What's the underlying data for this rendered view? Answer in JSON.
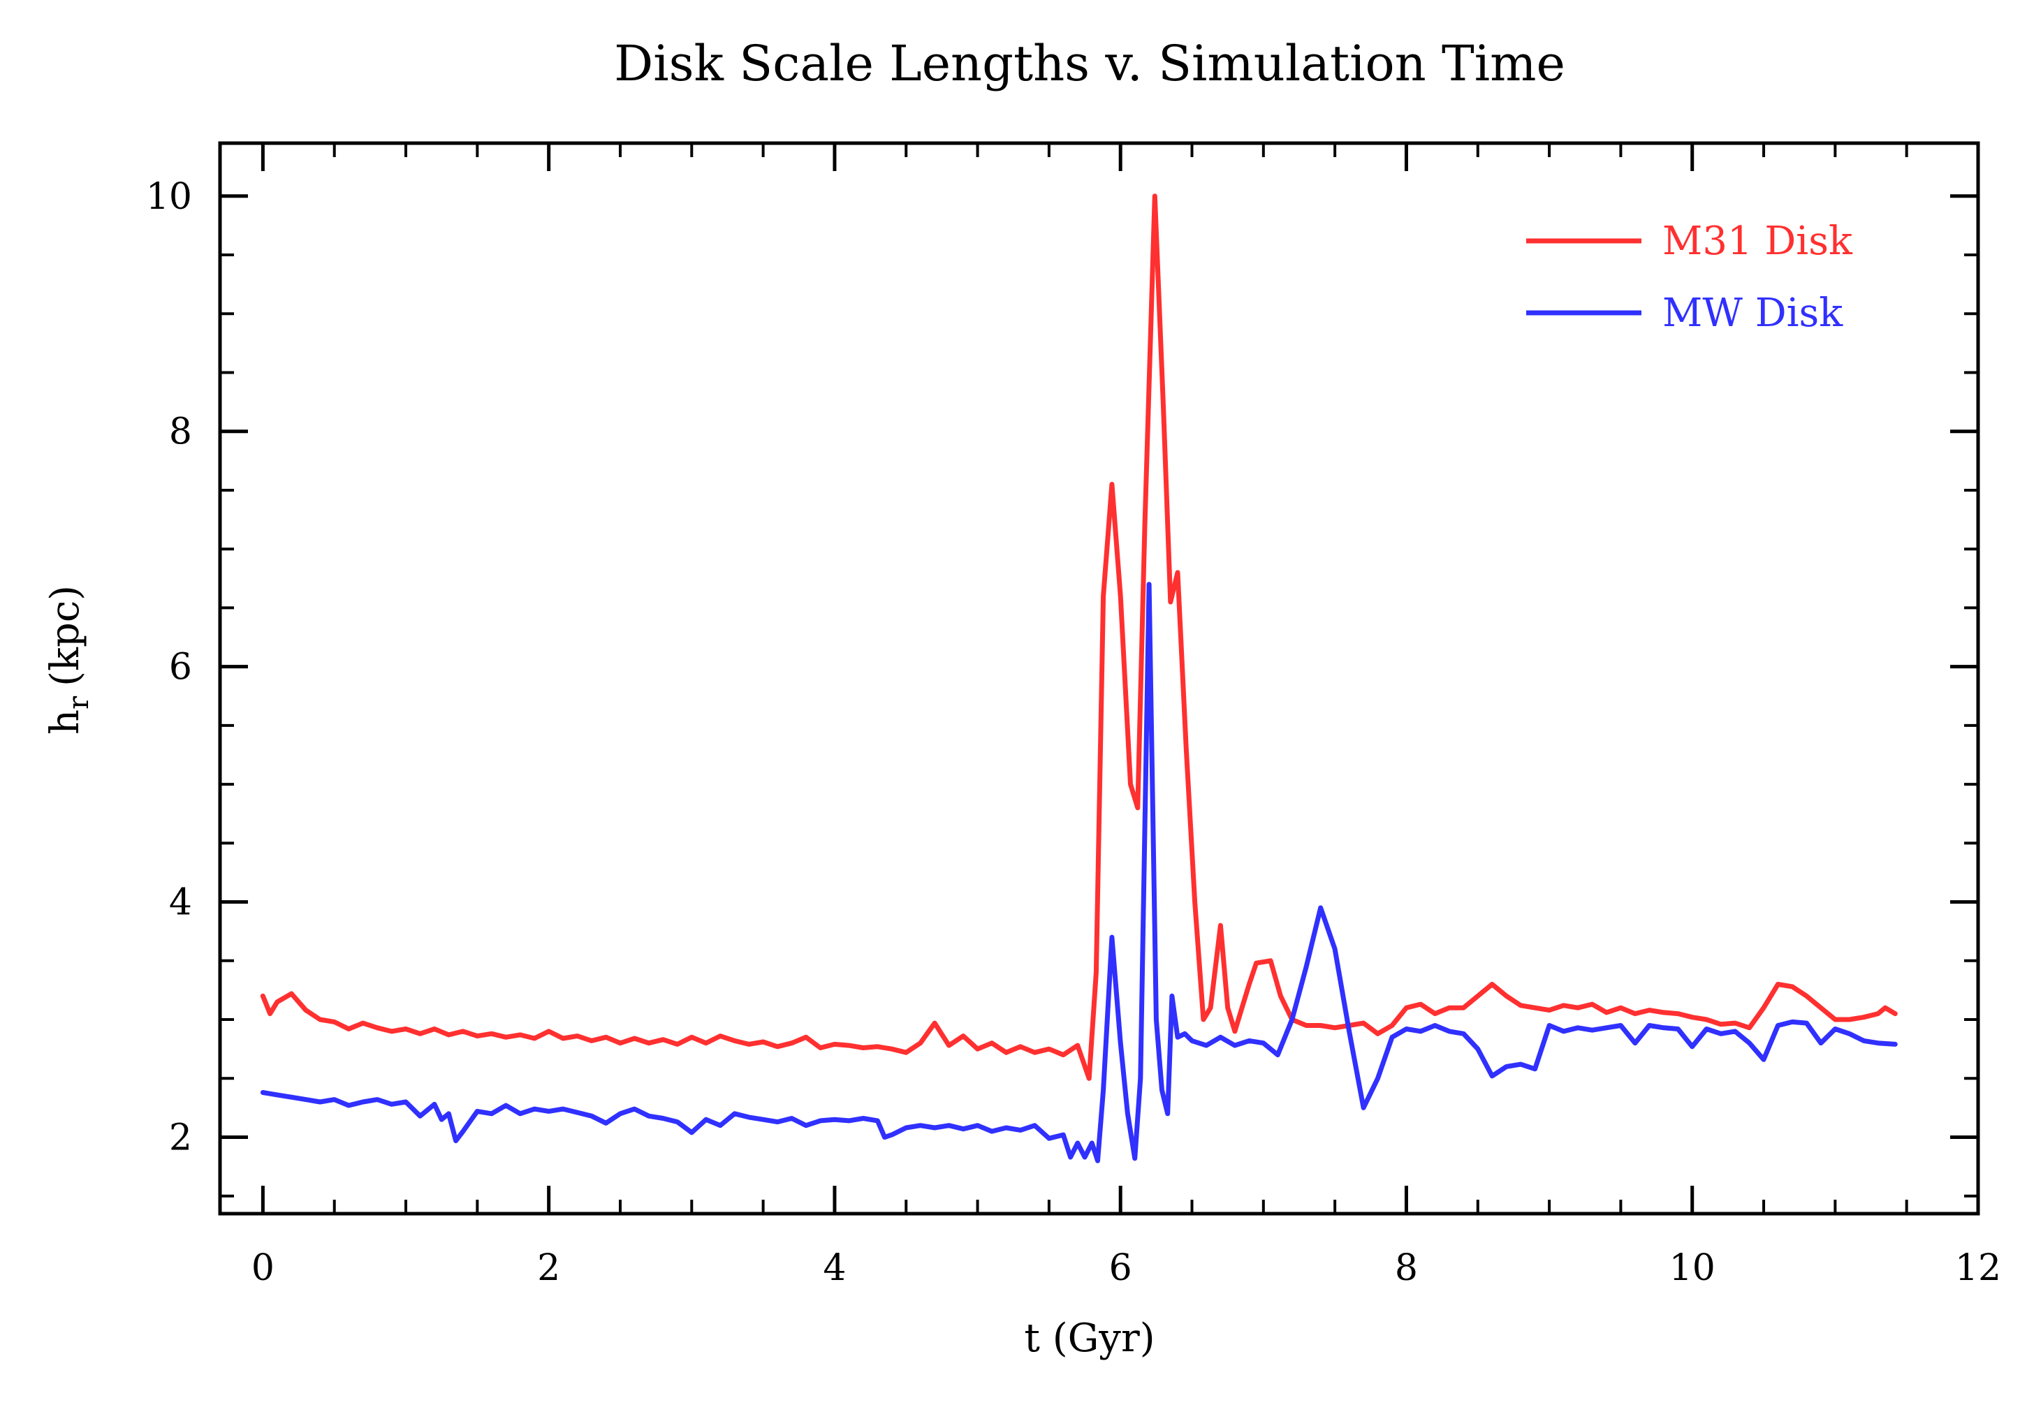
{
  "chart_data": {
    "type": "line",
    "title": "Disk Scale Lengths v. Simulation Time",
    "xlabel": "t (Gyr)",
    "ylabel": "h",
    "ylabel_subscript": "r",
    "ylabel_unit": "(kpc)",
    "xlim": [
      -0.3,
      12
    ],
    "ylim": [
      1.35,
      10.45
    ],
    "xticks": [
      0,
      2,
      4,
      6,
      8,
      10,
      12
    ],
    "yticks": [
      2,
      4,
      6,
      8,
      10
    ],
    "legend_position": "top-right",
    "grid": false,
    "series": [
      {
        "name": "M31 Disk",
        "color": "#ff3030",
        "points": [
          [
            0,
            3.2
          ],
          [
            0.05,
            3.05
          ],
          [
            0.1,
            3.15
          ],
          [
            0.2,
            3.22
          ],
          [
            0.3,
            3.08
          ],
          [
            0.4,
            3.0
          ],
          [
            0.5,
            2.98
          ],
          [
            0.6,
            2.92
          ],
          [
            0.7,
            2.97
          ],
          [
            0.8,
            2.93
          ],
          [
            0.9,
            2.9
          ],
          [
            1.0,
            2.92
          ],
          [
            1.1,
            2.88
          ],
          [
            1.2,
            2.92
          ],
          [
            1.3,
            2.87
          ],
          [
            1.4,
            2.9
          ],
          [
            1.5,
            2.86
          ],
          [
            1.6,
            2.88
          ],
          [
            1.7,
            2.85
          ],
          [
            1.8,
            2.87
          ],
          [
            1.9,
            2.84
          ],
          [
            2.0,
            2.9
          ],
          [
            2.1,
            2.84
          ],
          [
            2.2,
            2.86
          ],
          [
            2.3,
            2.82
          ],
          [
            2.4,
            2.85
          ],
          [
            2.5,
            2.8
          ],
          [
            2.6,
            2.84
          ],
          [
            2.7,
            2.8
          ],
          [
            2.8,
            2.83
          ],
          [
            2.9,
            2.79
          ],
          [
            3.0,
            2.85
          ],
          [
            3.1,
            2.8
          ],
          [
            3.2,
            2.86
          ],
          [
            3.3,
            2.82
          ],
          [
            3.4,
            2.79
          ],
          [
            3.5,
            2.81
          ],
          [
            3.6,
            2.77
          ],
          [
            3.7,
            2.8
          ],
          [
            3.8,
            2.85
          ],
          [
            3.9,
            2.76
          ],
          [
            4.0,
            2.79
          ],
          [
            4.1,
            2.78
          ],
          [
            4.2,
            2.76
          ],
          [
            4.3,
            2.77
          ],
          [
            4.4,
            2.75
          ],
          [
            4.5,
            2.72
          ],
          [
            4.6,
            2.8
          ],
          [
            4.7,
            2.97
          ],
          [
            4.8,
            2.78
          ],
          [
            4.9,
            2.86
          ],
          [
            5.0,
            2.75
          ],
          [
            5.1,
            2.8
          ],
          [
            5.2,
            2.72
          ],
          [
            5.3,
            2.77
          ],
          [
            5.4,
            2.72
          ],
          [
            5.5,
            2.75
          ],
          [
            5.6,
            2.7
          ],
          [
            5.7,
            2.78
          ],
          [
            5.78,
            2.5
          ],
          [
            5.83,
            3.4
          ],
          [
            5.88,
            6.6
          ],
          [
            5.94,
            7.55
          ],
          [
            6.0,
            6.6
          ],
          [
            6.07,
            5.0
          ],
          [
            6.12,
            4.8
          ],
          [
            6.17,
            7.2
          ],
          [
            6.24,
            10.0
          ],
          [
            6.3,
            8.2
          ],
          [
            6.35,
            6.55
          ],
          [
            6.4,
            6.8
          ],
          [
            6.46,
            5.3
          ],
          [
            6.52,
            4.0
          ],
          [
            6.58,
            3.0
          ],
          [
            6.63,
            3.1
          ],
          [
            6.7,
            3.8
          ],
          [
            6.75,
            3.1
          ],
          [
            6.8,
            2.9
          ],
          [
            6.85,
            3.1
          ],
          [
            6.9,
            3.3
          ],
          [
            6.95,
            3.48
          ],
          [
            7.05,
            3.5
          ],
          [
            7.12,
            3.2
          ],
          [
            7.2,
            3.0
          ],
          [
            7.3,
            2.95
          ],
          [
            7.4,
            2.95
          ],
          [
            7.5,
            2.93
          ],
          [
            7.6,
            2.95
          ],
          [
            7.7,
            2.97
          ],
          [
            7.8,
            2.88
          ],
          [
            7.9,
            2.95
          ],
          [
            8.0,
            3.1
          ],
          [
            8.1,
            3.13
          ],
          [
            8.2,
            3.05
          ],
          [
            8.3,
            3.1
          ],
          [
            8.4,
            3.1
          ],
          [
            8.5,
            3.2
          ],
          [
            8.6,
            3.3
          ],
          [
            8.7,
            3.2
          ],
          [
            8.8,
            3.12
          ],
          [
            8.9,
            3.1
          ],
          [
            9.0,
            3.08
          ],
          [
            9.1,
            3.12
          ],
          [
            9.2,
            3.1
          ],
          [
            9.3,
            3.13
          ],
          [
            9.4,
            3.06
          ],
          [
            9.5,
            3.1
          ],
          [
            9.6,
            3.05
          ],
          [
            9.7,
            3.08
          ],
          [
            9.8,
            3.06
          ],
          [
            9.9,
            3.05
          ],
          [
            10.0,
            3.02
          ],
          [
            10.1,
            3.0
          ],
          [
            10.2,
            2.96
          ],
          [
            10.3,
            2.97
          ],
          [
            10.4,
            2.93
          ],
          [
            10.5,
            3.1
          ],
          [
            10.6,
            3.3
          ],
          [
            10.7,
            3.28
          ],
          [
            10.8,
            3.2
          ],
          [
            10.9,
            3.1
          ],
          [
            11.0,
            3.0
          ],
          [
            11.1,
            3.0
          ],
          [
            11.2,
            3.02
          ],
          [
            11.3,
            3.05
          ],
          [
            11.35,
            3.1
          ],
          [
            11.42,
            3.05
          ]
        ]
      },
      {
        "name": "MW Disk",
        "color": "#3030ff",
        "points": [
          [
            0,
            2.38
          ],
          [
            0.1,
            2.36
          ],
          [
            0.2,
            2.34
          ],
          [
            0.3,
            2.32
          ],
          [
            0.4,
            2.3
          ],
          [
            0.5,
            2.32
          ],
          [
            0.6,
            2.27
          ],
          [
            0.7,
            2.3
          ],
          [
            0.8,
            2.32
          ],
          [
            0.9,
            2.28
          ],
          [
            1.0,
            2.3
          ],
          [
            1.1,
            2.18
          ],
          [
            1.2,
            2.28
          ],
          [
            1.25,
            2.15
          ],
          [
            1.3,
            2.2
          ],
          [
            1.35,
            1.97
          ],
          [
            1.4,
            2.05
          ],
          [
            1.5,
            2.22
          ],
          [
            1.6,
            2.2
          ],
          [
            1.7,
            2.27
          ],
          [
            1.8,
            2.2
          ],
          [
            1.9,
            2.24
          ],
          [
            2.0,
            2.22
          ],
          [
            2.1,
            2.24
          ],
          [
            2.2,
            2.21
          ],
          [
            2.3,
            2.18
          ],
          [
            2.4,
            2.12
          ],
          [
            2.5,
            2.2
          ],
          [
            2.6,
            2.24
          ],
          [
            2.7,
            2.18
          ],
          [
            2.8,
            2.16
          ],
          [
            2.9,
            2.13
          ],
          [
            3.0,
            2.04
          ],
          [
            3.1,
            2.15
          ],
          [
            3.2,
            2.1
          ],
          [
            3.3,
            2.2
          ],
          [
            3.4,
            2.17
          ],
          [
            3.5,
            2.15
          ],
          [
            3.6,
            2.13
          ],
          [
            3.7,
            2.16
          ],
          [
            3.8,
            2.1
          ],
          [
            3.9,
            2.14
          ],
          [
            4.0,
            2.15
          ],
          [
            4.1,
            2.14
          ],
          [
            4.2,
            2.16
          ],
          [
            4.3,
            2.14
          ],
          [
            4.35,
            2.0
          ],
          [
            4.4,
            2.02
          ],
          [
            4.5,
            2.08
          ],
          [
            4.6,
            2.1
          ],
          [
            4.7,
            2.08
          ],
          [
            4.8,
            2.1
          ],
          [
            4.9,
            2.07
          ],
          [
            5.0,
            2.1
          ],
          [
            5.1,
            2.05
          ],
          [
            5.2,
            2.08
          ],
          [
            5.3,
            2.06
          ],
          [
            5.4,
            2.1
          ],
          [
            5.5,
            1.99
          ],
          [
            5.6,
            2.02
          ],
          [
            5.65,
            1.83
          ],
          [
            5.7,
            1.95
          ],
          [
            5.75,
            1.83
          ],
          [
            5.8,
            1.95
          ],
          [
            5.84,
            1.8
          ],
          [
            5.88,
            2.4
          ],
          [
            5.94,
            3.7
          ],
          [
            6.0,
            2.8
          ],
          [
            6.05,
            2.2
          ],
          [
            6.1,
            1.82
          ],
          [
            6.14,
            2.5
          ],
          [
            6.2,
            6.7
          ],
          [
            6.25,
            3.0
          ],
          [
            6.29,
            2.4
          ],
          [
            6.33,
            2.2
          ],
          [
            6.36,
            3.2
          ],
          [
            6.4,
            2.85
          ],
          [
            6.45,
            2.88
          ],
          [
            6.5,
            2.82
          ],
          [
            6.6,
            2.78
          ],
          [
            6.7,
            2.85
          ],
          [
            6.8,
            2.78
          ],
          [
            6.9,
            2.82
          ],
          [
            7.0,
            2.8
          ],
          [
            7.1,
            2.7
          ],
          [
            7.2,
            3.0
          ],
          [
            7.3,
            3.45
          ],
          [
            7.4,
            3.95
          ],
          [
            7.5,
            3.6
          ],
          [
            7.6,
            2.9
          ],
          [
            7.7,
            2.25
          ],
          [
            7.8,
            2.5
          ],
          [
            7.9,
            2.85
          ],
          [
            8.0,
            2.92
          ],
          [
            8.1,
            2.9
          ],
          [
            8.2,
            2.95
          ],
          [
            8.3,
            2.9
          ],
          [
            8.4,
            2.88
          ],
          [
            8.5,
            2.75
          ],
          [
            8.6,
            2.52
          ],
          [
            8.7,
            2.6
          ],
          [
            8.8,
            2.62
          ],
          [
            8.9,
            2.58
          ],
          [
            9.0,
            2.95
          ],
          [
            9.1,
            2.9
          ],
          [
            9.2,
            2.93
          ],
          [
            9.3,
            2.91
          ],
          [
            9.4,
            2.93
          ],
          [
            9.5,
            2.95
          ],
          [
            9.6,
            2.8
          ],
          [
            9.7,
            2.95
          ],
          [
            9.8,
            2.93
          ],
          [
            9.9,
            2.92
          ],
          [
            10.0,
            2.77
          ],
          [
            10.1,
            2.92
          ],
          [
            10.2,
            2.88
          ],
          [
            10.3,
            2.9
          ],
          [
            10.4,
            2.8
          ],
          [
            10.5,
            2.66
          ],
          [
            10.6,
            2.95
          ],
          [
            10.7,
            2.98
          ],
          [
            10.8,
            2.97
          ],
          [
            10.9,
            2.8
          ],
          [
            11.0,
            2.92
          ],
          [
            11.1,
            2.88
          ],
          [
            11.2,
            2.82
          ],
          [
            11.3,
            2.8
          ],
          [
            11.42,
            2.79
          ]
        ]
      }
    ]
  }
}
